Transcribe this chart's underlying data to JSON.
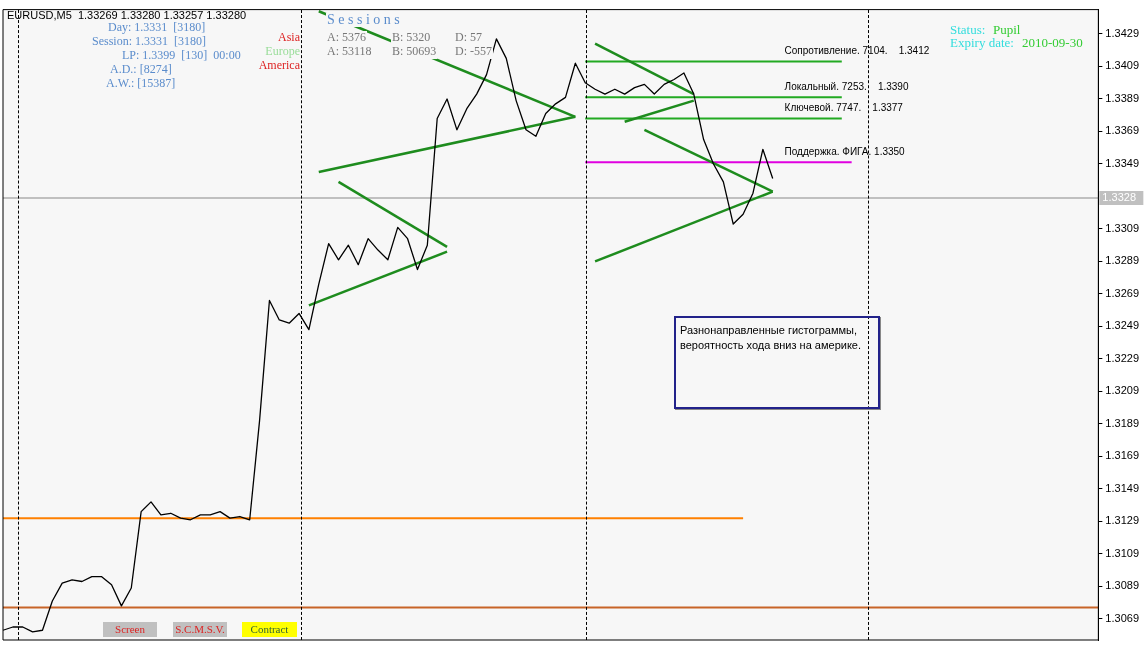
{
  "chart_data": {
    "type": "line",
    "title": "EURUSD,M5  1.33269 1.33280 1.33257 1.33280",
    "categories": [
      null,
      null,
      null,
      null,
      null,
      null,
      null,
      null,
      null,
      null,
      null,
      null,
      null,
      null,
      null,
      null,
      null,
      null,
      null,
      null,
      null,
      null,
      null,
      null,
      null,
      null,
      null,
      null,
      null,
      null,
      null,
      null,
      null,
      null,
      null,
      null,
      null,
      null,
      null,
      null,
      null,
      null,
      null,
      null,
      null,
      null,
      null,
      null,
      null,
      null,
      null,
      null,
      null,
      null,
      null,
      null,
      null,
      null,
      null,
      null,
      null,
      null,
      null,
      null,
      null,
      null,
      null,
      null,
      null,
      null,
      null,
      null,
      null,
      null,
      null,
      null,
      null,
      null,
      null,
      null,
      null,
      null,
      null,
      null,
      null,
      null,
      null,
      null,
      null,
      null,
      null,
      null,
      null,
      null,
      null,
      null,
      null,
      null,
      null,
      null,
      null,
      null,
      null,
      null,
      null,
      null,
      null,
      null,
      null,
      null,
      null,
      null
    ],
    "ylim": [
      1.3056,
      1.3444
    ],
    "yticks": [
      1.3069,
      1.3089,
      1.3109,
      1.3129,
      1.3149,
      1.3169,
      1.3189,
      1.3209,
      1.3229,
      1.3249,
      1.3269,
      1.3289,
      1.3309,
      1.3349,
      1.3369,
      1.3389,
      1.3409,
      1.3429
    ],
    "tick_labels": "y",
    "series": [
      {
        "color": "#000000",
        "values": [
          1.3062,
          1.3064,
          1.3064,
          1.3061,
          1.3062,
          1.308,
          1.3091,
          1.3093,
          1.3092,
          1.3095,
          1.3095,
          1.309,
          1.3077,
          1.3088,
          1.3135,
          1.3141,
          1.3133,
          1.3134,
          1.3131,
          1.313,
          1.3133,
          1.3133,
          1.3135,
          1.3131,
          1.3132,
          1.313,
          1.3191,
          1.3265,
          1.3253,
          1.3251,
          1.3257,
          1.3247,
          1.3275,
          1.33,
          1.329,
          1.3299,
          1.3287,
          1.3303,
          1.3296,
          1.329,
          1.331,
          1.3303,
          1.3284,
          1.3299,
          1.3377,
          1.3389,
          1.337,
          1.3383,
          1.3392,
          1.3404,
          1.3426,
          1.3414,
          1.3388,
          1.337,
          1.3366,
          1.338,
          1.3386,
          1.339,
          1.3411,
          1.3399,
          1.3395,
          1.3392,
          1.3395,
          1.3392,
          1.3396,
          1.3398,
          1.3392,
          1.3398,
          1.3401,
          1.3405,
          1.3392,
          1.3364,
          1.3349,
          1.3338,
          1.3312,
          1.3318,
          1.3331,
          1.3358,
          1.334,
          null,
          null,
          null,
          null,
          null,
          null,
          null,
          null,
          null,
          null,
          null,
          null,
          null,
          null,
          null,
          null,
          null,
          null,
          null,
          null,
          null,
          null,
          null,
          null,
          null,
          null,
          null,
          null,
          null,
          null,
          null,
          null,
          null
        ]
      },
      {
        "color": "#1e8c1e",
        "values": [
          null,
          null,
          null,
          null,
          null,
          null,
          null,
          null,
          null,
          null,
          null,
          null,
          null,
          null,
          null,
          null,
          null,
          null,
          null,
          null,
          null,
          null,
          null,
          null,
          null,
          null,
          null,
          null,
          null,
          null,
          null,
          null,
          1.3443,
          null,
          null,
          null,
          null,
          null,
          null,
          null,
          null,
          null,
          null,
          null,
          null,
          null,
          null,
          null,
          null,
          null,
          null,
          null,
          null,
          null,
          null,
          null,
          null,
          null,
          1.3378,
          null,
          null,
          null,
          null,
          null,
          null,
          null,
          null,
          null,
          null,
          null,
          null,
          null,
          null,
          null,
          null,
          null,
          null,
          null,
          null,
          null,
          null,
          null,
          null,
          null,
          null,
          null,
          null,
          null,
          null,
          null,
          null,
          null,
          null,
          null,
          null,
          null,
          null,
          null,
          null,
          null,
          null,
          null,
          null,
          null,
          null,
          null,
          null,
          null,
          null,
          null,
          null,
          null
        ]
      },
      {
        "color": "#1e8c1e",
        "values": [
          null,
          null,
          null,
          null,
          null,
          null,
          null,
          null,
          null,
          null,
          null,
          null,
          null,
          null,
          null,
          null,
          null,
          null,
          null,
          null,
          null,
          null,
          null,
          null,
          null,
          null,
          null,
          null,
          null,
          null,
          null,
          null,
          1.3344,
          null,
          null,
          null,
          null,
          null,
          null,
          null,
          null,
          null,
          null,
          null,
          null,
          null,
          null,
          null,
          null,
          null,
          null,
          null,
          null,
          null,
          null,
          null,
          null,
          null,
          1.3378,
          null,
          null,
          null,
          null,
          null,
          null,
          null,
          null,
          null,
          null,
          null,
          null,
          null,
          null,
          null,
          null,
          null,
          null,
          null,
          null,
          null,
          null,
          null,
          null,
          null,
          null,
          null,
          null,
          null,
          null,
          null,
          null,
          null,
          null,
          null,
          null,
          null,
          null,
          null,
          null,
          null,
          null,
          null,
          null,
          null,
          null,
          null,
          null,
          null,
          null,
          null,
          null,
          null
        ]
      },
      {
        "color": "#1e8c1e",
        "values": [
          null,
          null,
          null,
          null,
          null,
          null,
          null,
          null,
          null,
          null,
          null,
          null,
          null,
          null,
          null,
          null,
          null,
          null,
          null,
          null,
          null,
          null,
          null,
          null,
          null,
          null,
          null,
          null,
          null,
          null,
          null,
          null,
          null,
          null,
          1.3338,
          null,
          null,
          null,
          null,
          null,
          null,
          null,
          null,
          null,
          null,
          1.3298,
          null,
          null,
          null,
          null,
          null,
          null,
          null,
          null,
          null,
          null,
          null,
          null,
          null,
          null,
          null,
          null,
          null,
          null,
          null,
          null,
          null,
          null,
          null,
          null,
          null,
          null,
          null,
          null,
          null,
          null,
          null,
          null,
          null,
          null,
          null,
          null,
          null,
          null,
          null,
          null,
          null,
          null,
          null,
          null,
          null,
          null,
          null,
          null,
          null,
          null,
          null,
          null,
          null,
          null,
          null,
          null,
          null,
          null,
          null,
          null,
          null,
          null,
          null,
          null,
          null,
          null
        ]
      },
      {
        "color": "#1e8c1e",
        "values": [
          null,
          null,
          null,
          null,
          null,
          null,
          null,
          null,
          null,
          null,
          null,
          null,
          null,
          null,
          null,
          null,
          null,
          null,
          null,
          null,
          null,
          null,
          null,
          null,
          null,
          null,
          null,
          null,
          null,
          null,
          null,
          1.3262,
          null,
          null,
          null,
          null,
          null,
          null,
          null,
          null,
          null,
          null,
          null,
          null,
          null,
          1.3295,
          null,
          null,
          null,
          null,
          null,
          null,
          null,
          null,
          null,
          null,
          null,
          null,
          null,
          null,
          null,
          null,
          null,
          null,
          null,
          null,
          null,
          null,
          null,
          null,
          null,
          null,
          null,
          null,
          null,
          null,
          null,
          null,
          null,
          null,
          null,
          null,
          null,
          null,
          null,
          null,
          null,
          null,
          null,
          null,
          null,
          null,
          null,
          null,
          null,
          null,
          null,
          null,
          null,
          null,
          null,
          null,
          null,
          null,
          null,
          null,
          null,
          null,
          null,
          null,
          null,
          null
        ]
      },
      {
        "color": "#1e8c1e",
        "values": [
          null,
          null,
          null,
          null,
          null,
          null,
          null,
          null,
          null,
          null,
          null,
          null,
          null,
          null,
          null,
          null,
          null,
          null,
          null,
          null,
          null,
          null,
          null,
          null,
          null,
          null,
          null,
          null,
          null,
          null,
          null,
          null,
          null,
          null,
          null,
          null,
          null,
          null,
          null,
          null,
          null,
          null,
          null,
          null,
          null,
          null,
          null,
          null,
          null,
          null,
          null,
          null,
          null,
          null,
          null,
          null,
          null,
          null,
          null,
          null,
          1.3423,
          null,
          null,
          null,
          null,
          null,
          null,
          null,
          null,
          null,
          1.3392,
          null,
          null,
          null,
          null,
          null,
          null,
          null,
          null,
          null,
          null,
          null,
          null,
          null,
          null,
          null,
          null,
          null,
          null,
          null,
          null,
          null,
          null,
          null,
          null,
          null,
          null,
          null,
          null,
          null,
          null,
          null,
          null,
          null,
          null,
          null,
          null,
          null,
          null,
          null,
          null,
          null
        ]
      },
      {
        "color": "#1e8c1e",
        "values": [
          null,
          null,
          null,
          null,
          null,
          null,
          null,
          null,
          null,
          null,
          null,
          null,
          null,
          null,
          null,
          null,
          null,
          null,
          null,
          null,
          null,
          null,
          null,
          null,
          null,
          null,
          null,
          null,
          null,
          null,
          null,
          null,
          null,
          null,
          null,
          null,
          null,
          null,
          null,
          null,
          null,
          null,
          null,
          null,
          null,
          null,
          null,
          null,
          null,
          null,
          null,
          null,
          null,
          null,
          null,
          null,
          null,
          null,
          null,
          null,
          null,
          null,
          null,
          1.3375,
          null,
          null,
          null,
          null,
          null,
          null,
          1.3388,
          null,
          null,
          null,
          null,
          null,
          null,
          null,
          null,
          null,
          null,
          null,
          null,
          null,
          null,
          null,
          null,
          null,
          null,
          null,
          null,
          null,
          null,
          null,
          null,
          null,
          null,
          null,
          null,
          null,
          null,
          null,
          null,
          null,
          null,
          null,
          null,
          null,
          null,
          null,
          null,
          null
        ]
      },
      {
        "color": "#1e8c1e",
        "values": [
          null,
          null,
          null,
          null,
          null,
          null,
          null,
          null,
          null,
          null,
          null,
          null,
          null,
          null,
          null,
          null,
          null,
          null,
          null,
          null,
          null,
          null,
          null,
          null,
          null,
          null,
          null,
          null,
          null,
          null,
          null,
          null,
          null,
          null,
          null,
          null,
          null,
          null,
          null,
          null,
          null,
          null,
          null,
          null,
          null,
          null,
          null,
          null,
          null,
          null,
          null,
          null,
          null,
          null,
          null,
          null,
          null,
          null,
          null,
          null,
          null,
          null,
          null,
          null,
          null,
          1.337,
          null,
          null,
          null,
          null,
          null,
          null,
          null,
          null,
          null,
          null,
          null,
          null,
          1.3332,
          null,
          null,
          null,
          null,
          null,
          null,
          null,
          null,
          null,
          null,
          null,
          null,
          null,
          null,
          null,
          null,
          null,
          null,
          null,
          null,
          null,
          null,
          null,
          null,
          null,
          null,
          null,
          null,
          null,
          null,
          null,
          null,
          null
        ]
      },
      {
        "color": "#1e8c1e",
        "values": [
          null,
          null,
          null,
          null,
          null,
          null,
          null,
          null,
          null,
          null,
          null,
          null,
          null,
          null,
          null,
          null,
          null,
          null,
          null,
          null,
          null,
          null,
          null,
          null,
          null,
          null,
          null,
          null,
          null,
          null,
          null,
          null,
          null,
          null,
          null,
          null,
          null,
          null,
          null,
          null,
          null,
          null,
          null,
          null,
          null,
          null,
          null,
          null,
          null,
          null,
          null,
          null,
          null,
          null,
          null,
          null,
          null,
          null,
          null,
          null,
          1.3289,
          null,
          null,
          null,
          null,
          null,
          null,
          null,
          null,
          null,
          null,
          null,
          null,
          null,
          null,
          null,
          null,
          null,
          1.3332,
          null,
          null,
          null,
          null,
          null,
          null,
          null,
          null,
          null,
          null,
          null,
          null,
          null,
          null,
          null,
          null,
          null,
          null,
          null,
          null,
          null,
          null,
          null,
          null,
          null,
          null,
          null,
          null,
          null,
          null,
          null,
          null,
          null
        ]
      }
    ],
    "ref_lines": [
      {
        "axis": "y",
        "value": 1.3412,
        "label": "Сопротивление. 7104.    1.3412",
        "color": "#22aa22"
      },
      {
        "axis": "y",
        "value": 1.339,
        "label": "Локальный. 7253.    1.3390",
        "color": "#22aa22"
      },
      {
        "axis": "y",
        "value": 1.3377,
        "label": "Ключевой. 7747.    1.3377",
        "color": "#22aa22"
      },
      {
        "axis": "y",
        "value": 1.335,
        "label": "Поддержка. ФИГА. 1.3350",
        "color": "#e000e0"
      },
      {
        "axis": "y",
        "value": 1.3131,
        "color": "#ff8000"
      },
      {
        "axis": "y",
        "value": 1.3076,
        "color": "#c86428"
      },
      {
        "axis": "y",
        "value": 1.3328,
        "label": "1.3328",
        "color": "#c0c0c0"
      }
    ],
    "annotations": [
      "Day: 1.3331  [3180]",
      "Session: 1.3331  [3180]",
      "LP: 1.3399  [130]  00:00",
      "A.D.: [8274]",
      "A.W.: [15387]",
      "S e s s i o n s",
      "Asia",
      "Europe",
      "America",
      "A: 5376",
      "B: 5320",
      "D: 57",
      "A: 53118",
      "B: 50693",
      "D: -557",
      "Status:",
      "Pupil",
      "Expiry date:",
      "2010-09-30",
      "Разнонаправленные гистограммы,",
      "вероятность хода вниз на америке.",
      "Screen",
      "S.C.M.S.V.",
      "Contract"
    ]
  }
}
